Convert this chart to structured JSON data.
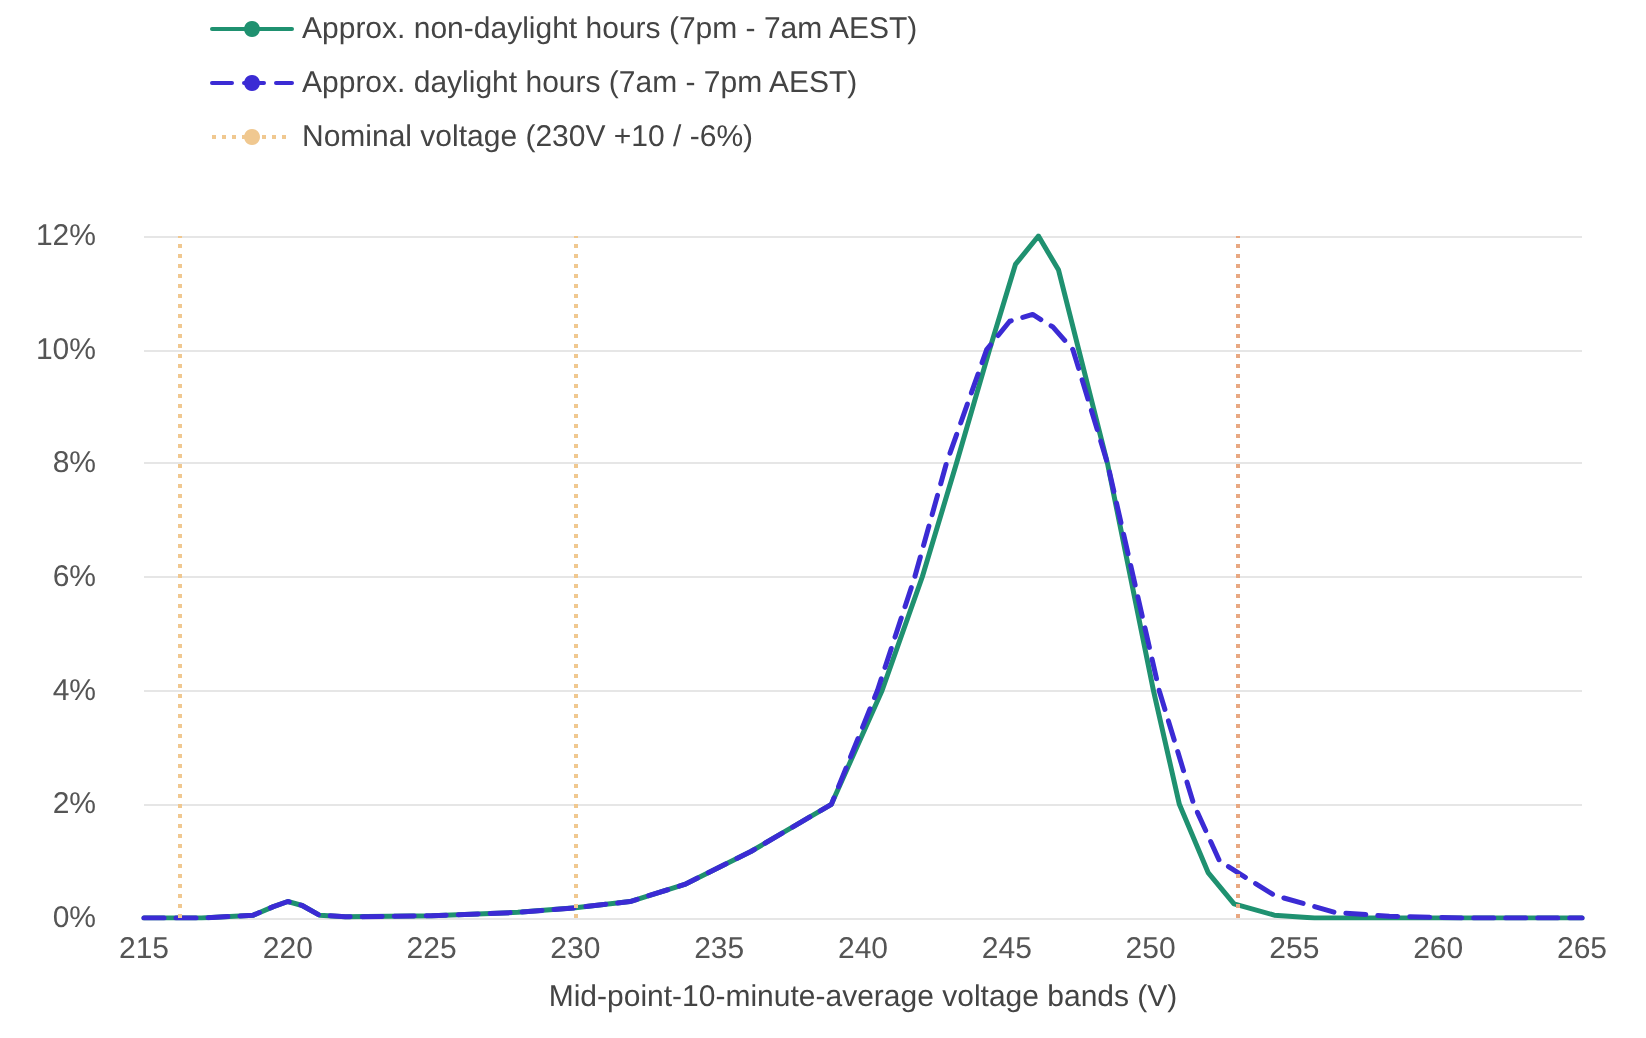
{
  "chart_data": {
    "type": "line",
    "xlabel": "Mid-point-10-minute-average voltage bands (V)",
    "series": [
      {
        "name": "Approx. non-daylight hours (7pm - 7am AEST)",
        "color": "#1f9170",
        "line_style": "solid",
        "x": [
          215,
          217,
          218.8,
          219.5,
          220,
          220.5,
          221.1,
          222,
          225,
          228,
          230,
          231.9,
          233.8,
          236.1,
          238.9,
          240.66,
          242.06,
          243.25,
          244.4,
          245.3,
          246.1,
          246.8,
          247.5,
          248.5,
          249.3,
          250.1,
          251,
          252,
          252.9,
          254.3,
          255.7,
          260,
          265
        ],
        "values": [
          0,
          0,
          0.05,
          0.2,
          0.29,
          0.22,
          0.05,
          0.02,
          0.04,
          0.1,
          0.18,
          0.29,
          0.59,
          1.17,
          2,
          4,
          6,
          8,
          10,
          11.5,
          12,
          11.4,
          10,
          8,
          6,
          4,
          2,
          0.8,
          0.25,
          0.05,
          0,
          0,
          0
        ]
      },
      {
        "name": "Approx. daylight hours (7am - 7pm AEST)",
        "color": "#3b2bd4",
        "line_style": "dashed",
        "x": [
          215,
          217,
          218.8,
          219.5,
          220,
          220.5,
          221.1,
          222,
          225,
          228,
          230,
          231.9,
          233.8,
          236.1,
          238.9,
          240.5,
          241.8,
          242.9,
          244.3,
          245.1,
          245.9,
          246.6,
          247.3,
          248.5,
          249.4,
          250.3,
          251.5,
          252.4,
          254.3,
          256.4,
          258.3,
          261,
          265
        ],
        "values": [
          0,
          0,
          0.05,
          0.2,
          0.29,
          0.22,
          0.05,
          0.02,
          0.04,
          0.1,
          0.18,
          0.29,
          0.59,
          1.17,
          2,
          4,
          6,
          8,
          10,
          10.5,
          10.62,
          10.4,
          10,
          8,
          6,
          4,
          2,
          1,
          0.4,
          0.1,
          0.03,
          0,
          0
        ]
      }
    ],
    "xlim": [
      215,
      265
    ],
    "xticks": [
      215,
      220,
      225,
      230,
      235,
      240,
      245,
      250,
      255,
      260,
      265
    ],
    "ylim": [
      0,
      12
    ],
    "yticks": [
      {
        "value": 0,
        "label": "0%"
      },
      {
        "value": 2,
        "label": "2%"
      },
      {
        "value": 4,
        "label": "4%"
      },
      {
        "value": 6,
        "label": "6%"
      },
      {
        "value": 8,
        "label": "8%"
      },
      {
        "value": 10,
        "label": "10%"
      },
      {
        "value": 12,
        "label": "12%"
      }
    ],
    "ref_lines": [
      {
        "axis": "x",
        "value": 216.2,
        "label": "Nominal voltage (230V +10 / -6%)",
        "color": "#f0c890",
        "line_style": "dotted"
      },
      {
        "axis": "x",
        "value": 230,
        "color": "#f0c890",
        "line_style": "dotted"
      },
      {
        "axis": "x",
        "value": 253,
        "color": "#e8a882",
        "line_style": "dotted"
      }
    ],
    "grid": "y",
    "legend": "top left",
    "marker": "none"
  }
}
